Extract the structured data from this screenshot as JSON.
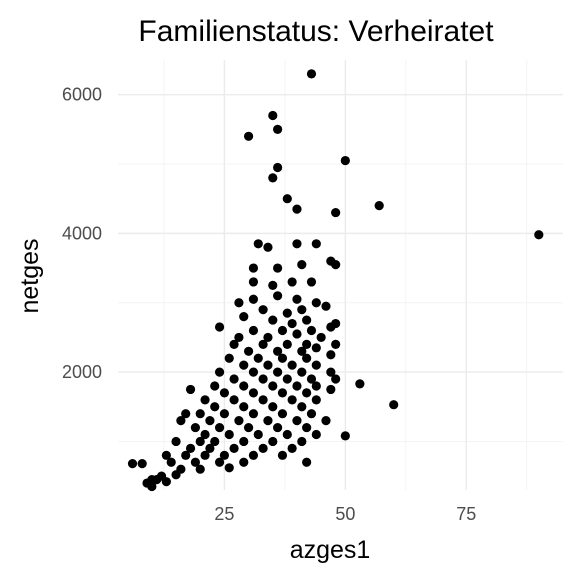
{
  "chart_data": {
    "type": "scatter",
    "title": "Familienstatus: Verheiratet",
    "xlabel": "azges1",
    "ylabel": "netges",
    "xlim": [
      3,
      95
    ],
    "ylim": [
      300,
      6500
    ],
    "x_ticks": [
      {
        "value": 25,
        "label": "25"
      },
      {
        "value": 50,
        "label": "50"
      },
      {
        "value": 75,
        "label": "75"
      }
    ],
    "y_ticks": [
      {
        "value": 2000,
        "label": "2000"
      },
      {
        "value": 4000,
        "label": "4000"
      },
      {
        "value": 6000,
        "label": "6000"
      }
    ],
    "grid": true,
    "point_color": "#000000",
    "points": [
      [
        43,
        6300
      ],
      [
        35,
        5700
      ],
      [
        30,
        5400
      ],
      [
        36,
        5500
      ],
      [
        50,
        5050
      ],
      [
        36,
        4950
      ],
      [
        35,
        4800
      ],
      [
        57,
        4400
      ],
      [
        38,
        4500
      ],
      [
        40,
        4350
      ],
      [
        48,
        4300
      ],
      [
        90,
        3980
      ],
      [
        32,
        3850
      ],
      [
        34,
        3800
      ],
      [
        40,
        3850
      ],
      [
        44,
        3850
      ],
      [
        41,
        3550
      ],
      [
        31,
        3500
      ],
      [
        36,
        3500
      ],
      [
        47,
        3600
      ],
      [
        48,
        3550
      ],
      [
        31,
        3300
      ],
      [
        35,
        3250
      ],
      [
        39,
        3300
      ],
      [
        43,
        3300
      ],
      [
        28,
        3000
      ],
      [
        31,
        3050
      ],
      [
        36,
        3100
      ],
      [
        40,
        3050
      ],
      [
        44,
        3000
      ],
      [
        33,
        2900
      ],
      [
        38,
        2850
      ],
      [
        41,
        2900
      ],
      [
        46,
        2950
      ],
      [
        29,
        2800
      ],
      [
        35,
        2750
      ],
      [
        39,
        2700
      ],
      [
        42,
        2750
      ],
      [
        48,
        2700
      ],
      [
        24,
        2650
      ],
      [
        31,
        2600
      ],
      [
        37,
        2600
      ],
      [
        43,
        2600
      ],
      [
        47,
        2650
      ],
      [
        28,
        2500
      ],
      [
        34,
        2500
      ],
      [
        40,
        2550
      ],
      [
        45,
        2500
      ],
      [
        27,
        2400
      ],
      [
        33,
        2400
      ],
      [
        38,
        2400
      ],
      [
        42,
        2400
      ],
      [
        48,
        2400
      ],
      [
        30,
        2300
      ],
      [
        36,
        2300
      ],
      [
        41,
        2300
      ],
      [
        44,
        2350
      ],
      [
        26,
        2200
      ],
      [
        32,
        2200
      ],
      [
        37,
        2200
      ],
      [
        42,
        2200
      ],
      [
        47,
        2250
      ],
      [
        29,
        2100
      ],
      [
        34,
        2100
      ],
      [
        39,
        2100
      ],
      [
        44,
        2100
      ],
      [
        24,
        2000
      ],
      [
        31,
        2000
      ],
      [
        36,
        2000
      ],
      [
        41,
        2000
      ],
      [
        47,
        2000
      ],
      [
        27,
        1900
      ],
      [
        33,
        1900
      ],
      [
        38,
        1900
      ],
      [
        43,
        1900
      ],
      [
        48,
        1900
      ],
      [
        23,
        1800
      ],
      [
        29,
        1800
      ],
      [
        35,
        1800
      ],
      [
        40,
        1800
      ],
      [
        44,
        1800
      ],
      [
        53,
        1830
      ],
      [
        18,
        1750
      ],
      [
        25,
        1700
      ],
      [
        31,
        1700
      ],
      [
        37,
        1700
      ],
      [
        42,
        1700
      ],
      [
        47,
        1750
      ],
      [
        21,
        1600
      ],
      [
        27,
        1600
      ],
      [
        33,
        1600
      ],
      [
        39,
        1600
      ],
      [
        44,
        1600
      ],
      [
        23,
        1500
      ],
      [
        29,
        1500
      ],
      [
        35,
        1500
      ],
      [
        41,
        1500
      ],
      [
        60,
        1530
      ],
      [
        17,
        1400
      ],
      [
        20,
        1400
      ],
      [
        25,
        1400
      ],
      [
        31,
        1400
      ],
      [
        37,
        1400
      ],
      [
        43,
        1400
      ],
      [
        16,
        1300
      ],
      [
        22,
        1300
      ],
      [
        28,
        1300
      ],
      [
        34,
        1300
      ],
      [
        40,
        1300
      ],
      [
        46,
        1300
      ],
      [
        19,
        1200
      ],
      [
        24,
        1200
      ],
      [
        30,
        1200
      ],
      [
        36,
        1200
      ],
      [
        42,
        1200
      ],
      [
        21,
        1100
      ],
      [
        26,
        1100
      ],
      [
        32,
        1100
      ],
      [
        38,
        1100
      ],
      [
        44,
        1100
      ],
      [
        50,
        1080
      ],
      [
        15,
        1000
      ],
      [
        20,
        1000
      ],
      [
        23,
        1000
      ],
      [
        29,
        1000
      ],
      [
        35,
        1000
      ],
      [
        41,
        1000
      ],
      [
        18,
        900
      ],
      [
        22,
        900
      ],
      [
        27,
        900
      ],
      [
        33,
        900
      ],
      [
        39,
        900
      ],
      [
        13,
        800
      ],
      [
        17,
        800
      ],
      [
        21,
        800
      ],
      [
        25,
        800
      ],
      [
        31,
        800
      ],
      [
        37,
        800
      ],
      [
        14,
        700
      ],
      [
        19,
        700
      ],
      [
        24,
        700
      ],
      [
        29,
        700
      ],
      [
        42,
        700
      ],
      [
        6,
        680
      ],
      [
        8,
        680
      ],
      [
        16,
        600
      ],
      [
        20,
        600
      ],
      [
        26,
        620
      ],
      [
        12,
        500
      ],
      [
        15,
        520
      ],
      [
        10,
        450
      ],
      [
        9,
        400
      ],
      [
        11,
        450
      ],
      [
        13,
        420
      ],
      [
        10,
        350
      ]
    ]
  }
}
